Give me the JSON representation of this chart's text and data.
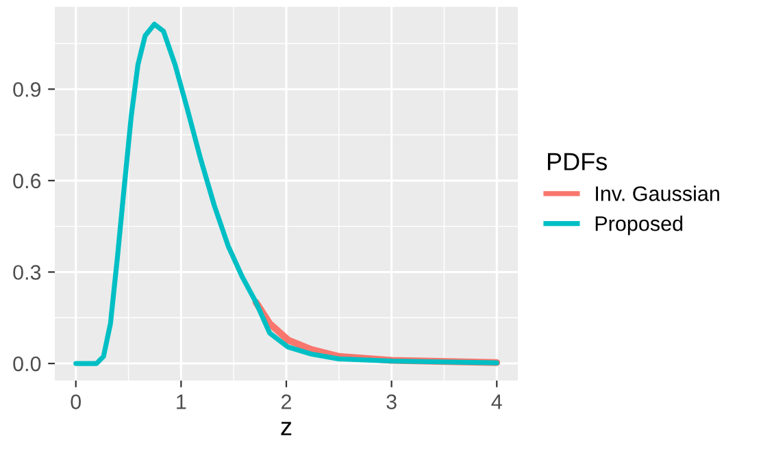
{
  "chart_data": {
    "type": "line",
    "xlabel": "z",
    "legend_title": "PDFs",
    "legend": "right",
    "grid": true,
    "line_style": "solid",
    "xlim": [
      -0.2,
      4.2
    ],
    "ylim": [
      -0.056,
      1.17
    ],
    "xticks": [
      0,
      1,
      2,
      3,
      4
    ],
    "yticks": [
      {
        "value": 0,
        "label": "0.0"
      },
      {
        "value": 0.3,
        "label": "0.3"
      },
      {
        "value": 0.6,
        "label": "0.6"
      },
      {
        "value": 0.9,
        "label": "0.9"
      }
    ],
    "series": [
      {
        "name": "Inv. Gaussian",
        "color": "#f8766d",
        "x": [
          1.711,
          1.842,
          2.017,
          2.237,
          2.5,
          3,
          4
        ],
        "values": [
          0.201,
          0.131,
          0.077,
          0.046,
          0.023,
          0.01,
          0.003
        ]
      },
      {
        "name": "Proposed",
        "color": "#00bfc4",
        "x": [
          0,
          0.197,
          0.263,
          0.329,
          0.395,
          0.46,
          0.526,
          0.59,
          0.658,
          0.746,
          0.833,
          0.943,
          1.053,
          1.184,
          1.316,
          1.447,
          1.579,
          1.711,
          1.842,
          2.017,
          2.237,
          2.5,
          3,
          4
        ],
        "values": [
          0,
          0,
          0.023,
          0.131,
          0.348,
          0.58,
          0.81,
          0.98,
          1.075,
          1.113,
          1.09,
          0.98,
          0.843,
          0.673,
          0.518,
          0.386,
          0.286,
          0.201,
          0.1,
          0.054,
          0.031,
          0.015,
          0.008,
          0.002
        ]
      }
    ]
  }
}
